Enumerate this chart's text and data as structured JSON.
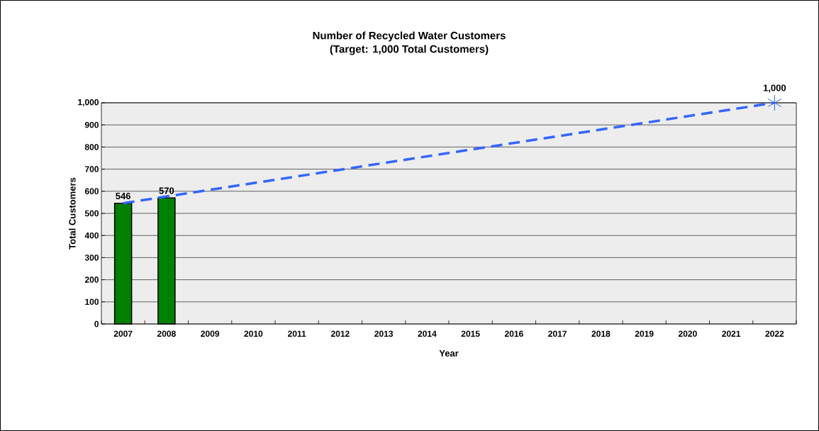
{
  "chart_data": {
    "type": "bar",
    "title": "Number of Recycled Water Customers",
    "subtitle": "(Target: 1,000 Total Customers)",
    "xlabel": "Year",
    "ylabel": "Total Customers",
    "xlim": [
      2006.5,
      2022.5
    ],
    "xticks": [
      2007,
      2008,
      2009,
      2010,
      2011,
      2012,
      2013,
      2014,
      2015,
      2016,
      2017,
      2018,
      2019,
      2020,
      2021,
      2022
    ],
    "series": [
      {
        "color": "#008000",
        "x": [
          2007,
          2008
        ],
        "values": [
          546,
          570
        ],
        "value_labels": [
          "546",
          "570"
        ]
      },
      {
        "type": "line",
        "color": "#3366ff",
        "line_style": "dashed",
        "x": [
          2007,
          2022
        ],
        "values": [
          546,
          1000
        ]
      },
      {
        "type": "scatter",
        "color": "#3366ff",
        "marker": "cross",
        "x": [
          2022
        ],
        "values": [
          1000
        ],
        "value_labels": [
          "1,000"
        ]
      }
    ],
    "ylim": [
      0,
      1000
    ],
    "yticks": [
      0,
      100,
      200,
      300,
      400,
      500,
      600,
      700,
      800,
      900,
      {
        "value": 1000,
        "label": "1,000"
      }
    ],
    "grid": "y"
  }
}
